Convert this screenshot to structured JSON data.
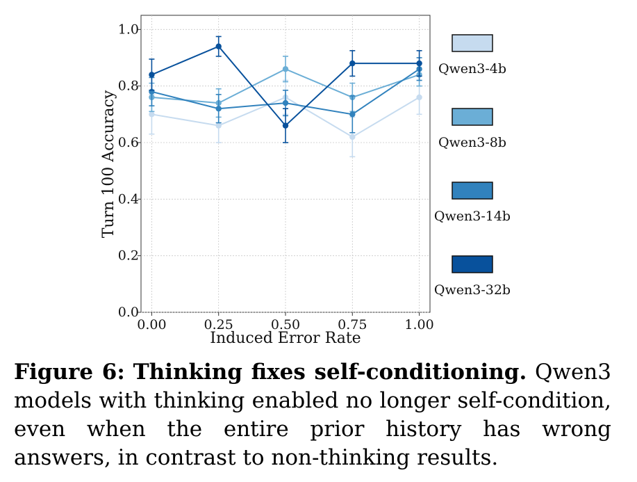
{
  "chart_data": {
    "type": "line",
    "xlabel": "Induced Error Rate",
    "ylabel": "Turn 100 Accuracy",
    "x": [
      0.0,
      0.25,
      0.5,
      0.75,
      1.0
    ],
    "x_tick_labels": [
      "0.00",
      "0.25",
      "0.50",
      "0.75",
      "1.00"
    ],
    "y_tick_values": [
      0.0,
      0.2,
      0.4,
      0.6,
      0.8,
      1.0
    ],
    "y_tick_labels": [
      "0.0",
      "0.2",
      "0.4",
      "0.6",
      "0.8",
      "1.0"
    ],
    "xlim": [
      -0.04,
      1.04
    ],
    "ylim": [
      0.0,
      1.05
    ],
    "grid": true,
    "legend_position": "right",
    "series": [
      {
        "name": "Qwen3-4b",
        "color": "#c6dbef",
        "values": [
          0.7,
          0.66,
          0.76,
          0.62,
          0.76
        ],
        "errors": [
          0.07,
          0.06,
          0.06,
          0.07,
          0.06
        ]
      },
      {
        "name": "Qwen3-8b",
        "color": "#6baed6",
        "values": [
          0.76,
          0.74,
          0.86,
          0.76,
          0.84
        ],
        "errors": [
          0.05,
          0.05,
          0.045,
          0.05,
          0.04
        ]
      },
      {
        "name": "Qwen3-14b",
        "color": "#3182bd",
        "values": [
          0.78,
          0.72,
          0.74,
          0.7,
          0.86
        ],
        "errors": [
          0.05,
          0.05,
          0.045,
          0.065,
          0.04
        ]
      },
      {
        "name": "Qwen3-32b",
        "color": "#08519c",
        "values": [
          0.84,
          0.94,
          0.66,
          0.88,
          0.88
        ],
        "errors": [
          0.055,
          0.035,
          0.06,
          0.045,
          0.045
        ]
      }
    ]
  },
  "caption": {
    "label": "Figure 6:",
    "title": "Thinking fixes self-conditioning.",
    "text": " Qwen3 models with thinking enabled no longer self-condition, even when the entire prior history has wrong answers, in contrast to non-thinking results."
  }
}
